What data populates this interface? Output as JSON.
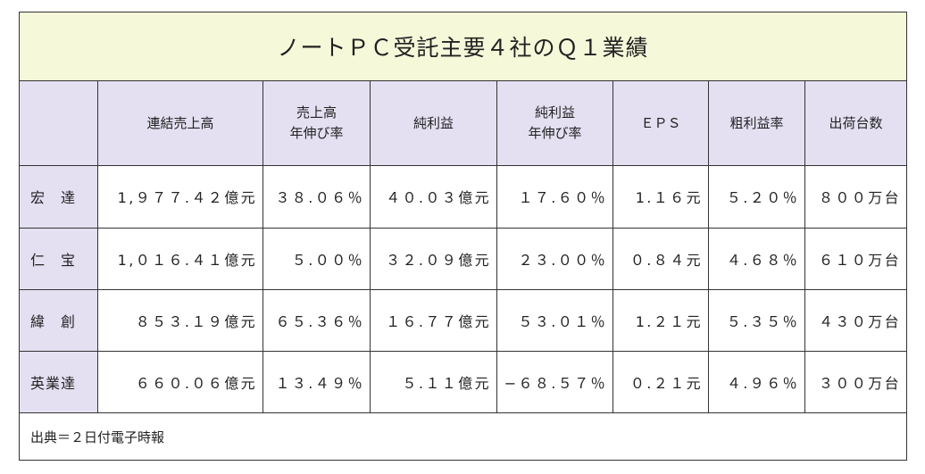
{
  "title": "ノートＰＣ受託主要４社のＱ１業績",
  "columns": [
    {
      "line1": "",
      "line2": ""
    },
    {
      "line1": "連結売上高",
      "line2": ""
    },
    {
      "line1": "売上高",
      "line2": "年伸び率"
    },
    {
      "line1": "純利益",
      "line2": ""
    },
    {
      "line1": "純利益",
      "line2": "年伸び率"
    },
    {
      "line1": "ＥＰＳ",
      "line2": ""
    },
    {
      "line1": "粗利益率",
      "line2": ""
    },
    {
      "line1": "出荷台数",
      "line2": ""
    }
  ],
  "rows": [
    {
      "company": "宏　達",
      "cells": [
        "1,９７７.４２億元",
        "３８.０６％",
        "４０.０３億元",
        "１７.６０％",
        "1.１６元",
        "５.２０％",
        "８００万台"
      ]
    },
    {
      "company": "仁　宝",
      "cells": [
        "1,０１６.４１億元",
        "５.００％",
        "３２.０９億元",
        "２３.００％",
        "０.８４元",
        "４.６８％",
        "６１０万台"
      ]
    },
    {
      "company": "緯　創",
      "cells": [
        "８５３.１９億元",
        "６５.３６％",
        "１６.７７億元",
        "５３.０１％",
        "1.２１元",
        "５.３５％",
        "４３０万台"
      ]
    },
    {
      "company": "英業達",
      "cells": [
        "６６０.０６億元",
        "１３.４９％",
        "５.１１億元",
        "−６８.５７％",
        "０.２１元",
        "４.９６％",
        "３００万台"
      ]
    }
  ],
  "source": "出典＝２日付電子時報",
  "colors": {
    "title_bg": "#f5f8d9",
    "header_bg": "#e4e0f2",
    "border": "#333333"
  }
}
